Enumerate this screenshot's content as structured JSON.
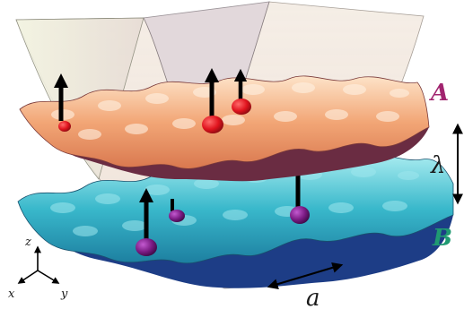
{
  "layers": {
    "upper": {
      "label": "A",
      "color": "#a1246f",
      "surface_color": "#e89d74",
      "underside_color": "#6a2c42"
    },
    "lower": {
      "label": "B",
      "color": "#1f9a72",
      "surface_color": "#38b7cc",
      "underside_color": "#1d3d86"
    }
  },
  "dimensions": {
    "interlayer_spacing": "λ",
    "lattice_constant": "a"
  },
  "axes": {
    "x": "x",
    "y": "y",
    "z": "z"
  },
  "atoms": {
    "upper_color": "#e0141e",
    "lower_color": "#7a1b83",
    "spin_arrow_color": "#000000"
  }
}
